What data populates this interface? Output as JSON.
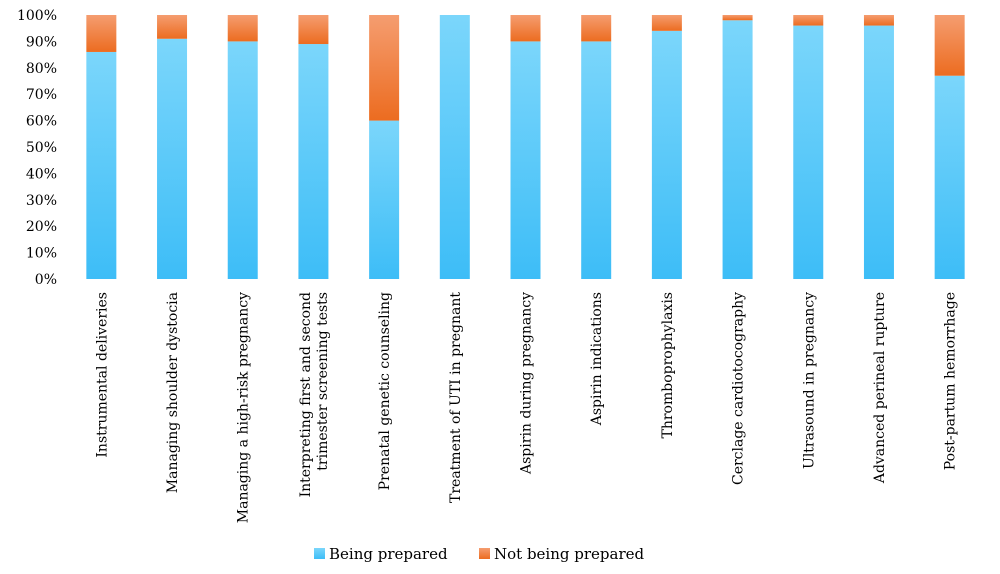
{
  "chart_data": {
    "type": "bar",
    "stacked": true,
    "categories": [
      "Instrumental deliveries",
      "Managing shoulder dystocia",
      "Managing a high-risk pregnancy",
      "Interpreting first and second trimester screening tests",
      "Prenatal genetic counseling",
      "Treatment of UTI in pregnant",
      "Aspirin during pregnancy",
      "Aspirin indications",
      "Thromboprophylaxis",
      "Cerclage cardiotocography",
      "Ultrasound in pregnancy",
      "Advanced perineal rupture",
      "Post-partum hemorrhage"
    ],
    "category_lines": [
      [
        "Instrumental deliveries"
      ],
      [
        "Managing shoulder dystocia"
      ],
      [
        "Managing a high-risk pregnancy"
      ],
      [
        "Interpreting first and second",
        "trimester screening tests"
      ],
      [
        "Prenatal genetic counseling"
      ],
      [
        "Treatment of UTI in pregnant"
      ],
      [
        "Aspirin during pregnancy"
      ],
      [
        "Aspirin indications"
      ],
      [
        "Thromboprophylaxis"
      ],
      [
        "Cerclage cardiotocography"
      ],
      [
        "Ultrasound in pregnancy"
      ],
      [
        "Advanced perineal rupture"
      ],
      [
        "Post-partum hemorrhage"
      ]
    ],
    "series": [
      {
        "name": "Being prepared",
        "color": "#4CC5F9",
        "values": [
          86,
          91,
          90,
          89,
          60,
          100,
          90,
          90,
          94,
          98,
          96,
          96,
          77
        ]
      },
      {
        "name": "Not being prepared",
        "color": "#F07F3C",
        "values": [
          14,
          9,
          10,
          11,
          40,
          0,
          10,
          10,
          6,
          2,
          4,
          4,
          23
        ]
      }
    ],
    "ylim": [
      0,
      100
    ],
    "yticks": [
      "0%",
      "10%",
      "20%",
      "30%",
      "40%",
      "50%",
      "60%",
      "70%",
      "80%",
      "90%",
      "100%"
    ],
    "grid": false,
    "legend_position": "bottom"
  }
}
